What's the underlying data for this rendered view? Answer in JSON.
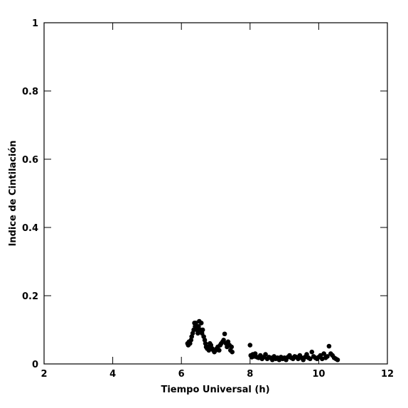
{
  "chart_data": {
    "type": "scatter",
    "x_label": "Tiempo Universal (h)",
    "y_label": "Indice de Cintilación",
    "x": [
      6.18,
      6.2,
      6.22,
      6.25,
      6.28,
      6.3,
      6.33,
      6.36,
      6.38,
      6.4,
      6.42,
      6.45,
      6.48,
      6.5,
      6.52,
      6.55,
      6.58,
      6.6,
      6.62,
      6.65,
      6.68,
      6.7,
      6.72,
      6.75,
      6.78,
      6.8,
      6.83,
      6.86,
      6.9,
      6.93,
      6.96,
      7.0,
      7.03,
      7.06,
      7.1,
      7.13,
      7.16,
      7.2,
      7.23,
      7.26,
      7.3,
      7.33,
      7.36,
      7.4,
      7.43,
      7.46,
      7.48,
      8.0,
      8.02,
      8.05,
      8.08,
      8.12,
      8.15,
      8.2,
      8.25,
      8.3,
      8.35,
      8.4,
      8.45,
      8.5,
      8.55,
      8.6,
      8.65,
      8.7,
      8.75,
      8.8,
      8.85,
      8.9,
      8.95,
      9.0,
      9.05,
      9.1,
      9.15,
      9.2,
      9.25,
      9.3,
      9.35,
      9.4,
      9.45,
      9.5,
      9.55,
      9.6,
      9.65,
      9.7,
      9.75,
      9.8,
      9.85,
      9.9,
      9.95,
      10.0,
      10.05,
      10.1,
      10.15,
      10.2,
      10.25,
      10.3,
      10.35,
      10.4,
      10.45,
      10.5,
      10.55
    ],
    "values": [
      0.06,
      0.055,
      0.065,
      0.06,
      0.07,
      0.08,
      0.09,
      0.1,
      0.12,
      0.11,
      0.12,
      0.1,
      0.09,
      0.11,
      0.125,
      0.1,
      0.12,
      0.09,
      0.1,
      0.08,
      0.07,
      0.06,
      0.05,
      0.045,
      0.05,
      0.04,
      0.06,
      0.055,
      0.045,
      0.04,
      0.035,
      0.04,
      0.045,
      0.05,
      0.04,
      0.055,
      0.06,
      0.065,
      0.07,
      0.088,
      0.06,
      0.05,
      0.065,
      0.055,
      0.04,
      0.05,
      0.035,
      0.055,
      0.025,
      0.02,
      0.028,
      0.022,
      0.03,
      0.02,
      0.018,
      0.025,
      0.015,
      0.02,
      0.028,
      0.015,
      0.02,
      0.018,
      0.012,
      0.022,
      0.015,
      0.018,
      0.012,
      0.02,
      0.015,
      0.018,
      0.012,
      0.02,
      0.025,
      0.018,
      0.015,
      0.022,
      0.02,
      0.015,
      0.025,
      0.018,
      0.012,
      0.02,
      0.028,
      0.018,
      0.015,
      0.035,
      0.022,
      0.018,
      0.015,
      0.02,
      0.025,
      0.015,
      0.03,
      0.018,
      0.022,
      0.052,
      0.03,
      0.025,
      0.018,
      0.015,
      0.012
    ],
    "color": "#000000",
    "xlim": [
      2,
      12
    ],
    "xticks": [
      2,
      4,
      6,
      8,
      10,
      12
    ],
    "ylim": [
      0,
      1
    ],
    "yticks": [
      0,
      0.2,
      0.4,
      0.6,
      0.8,
      1
    ]
  }
}
